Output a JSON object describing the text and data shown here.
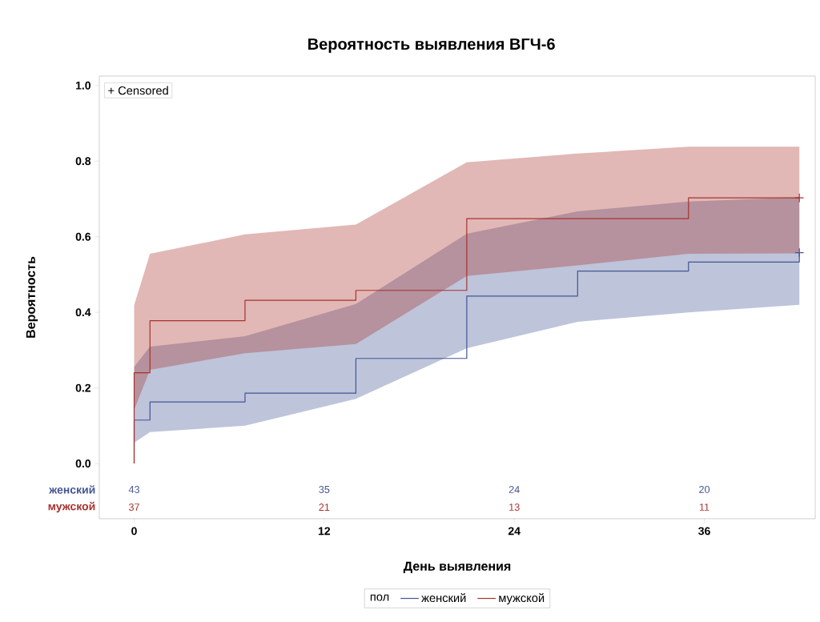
{
  "chart_data": {
    "type": "step",
    "title": "Вероятность выявления ВГЧ-6",
    "xlabel": "День выявления",
    "ylabel": "Вероятность",
    "legend_title": "пол",
    "xlim": [
      -2.2,
      43
    ],
    "ylim": [
      -0.146,
      1.025
    ],
    "xticks": [
      0,
      12,
      24,
      36
    ],
    "yticks": [
      {
        "value": 0,
        "label": "0.0"
      },
      {
        "value": 0.2,
        "label": "0.2"
      },
      {
        "value": 0.4,
        "label": "0.4"
      },
      {
        "value": 0.6,
        "label": "0.6"
      },
      {
        "value": 0.8,
        "label": "0.8"
      },
      {
        "value": 1,
        "label": "1.0"
      }
    ],
    "grid": false,
    "legend": "bottom",
    "series": [
      {
        "name": "женский",
        "color": "#445694",
        "x": [
          0,
          0,
          1,
          7,
          14,
          21,
          28,
          35,
          42
        ],
        "values": [
          0,
          0.115,
          0.163,
          0.186,
          0.278,
          0.443,
          0.509,
          0.533,
          0.558
        ],
        "lower": [
          0.055,
          0.055,
          0.083,
          0.1,
          0.171,
          0.305,
          0.375,
          0.4,
          0.42
        ],
        "upper": [
          0.256,
          0.256,
          0.309,
          0.337,
          0.422,
          0.608,
          0.667,
          0.693,
          0.704
        ]
      },
      {
        "name": "мужской",
        "color": "#a8332e",
        "x": [
          0,
          0,
          1,
          7,
          14,
          21,
          28,
          35,
          42
        ],
        "values": [
          0,
          0.24,
          0.378,
          0.432,
          0.458,
          0.648,
          0.648,
          0.703,
          0.703
        ],
        "lower": [
          0.142,
          0.142,
          0.248,
          0.292,
          0.316,
          0.496,
          0.524,
          0.555,
          0.556
        ],
        "upper": [
          0.419,
          0.419,
          0.555,
          0.606,
          0.632,
          0.797,
          0.82,
          0.838,
          0.838
        ]
      },
      {
        "type": "scatter",
        "marker": "cross",
        "color": "#445694",
        "x": [
          42
        ],
        "values": [
          0.558
        ]
      },
      {
        "type": "scatter",
        "marker": "cross",
        "color": "#a8332e",
        "x": [
          42
        ],
        "values": [
          0.703
        ]
      }
    ],
    "annotations": [
      "+ Censored",
      "женский",
      "43",
      "35",
      "24",
      "20",
      "мужской",
      "37",
      "21",
      "13",
      "11"
    ]
  }
}
